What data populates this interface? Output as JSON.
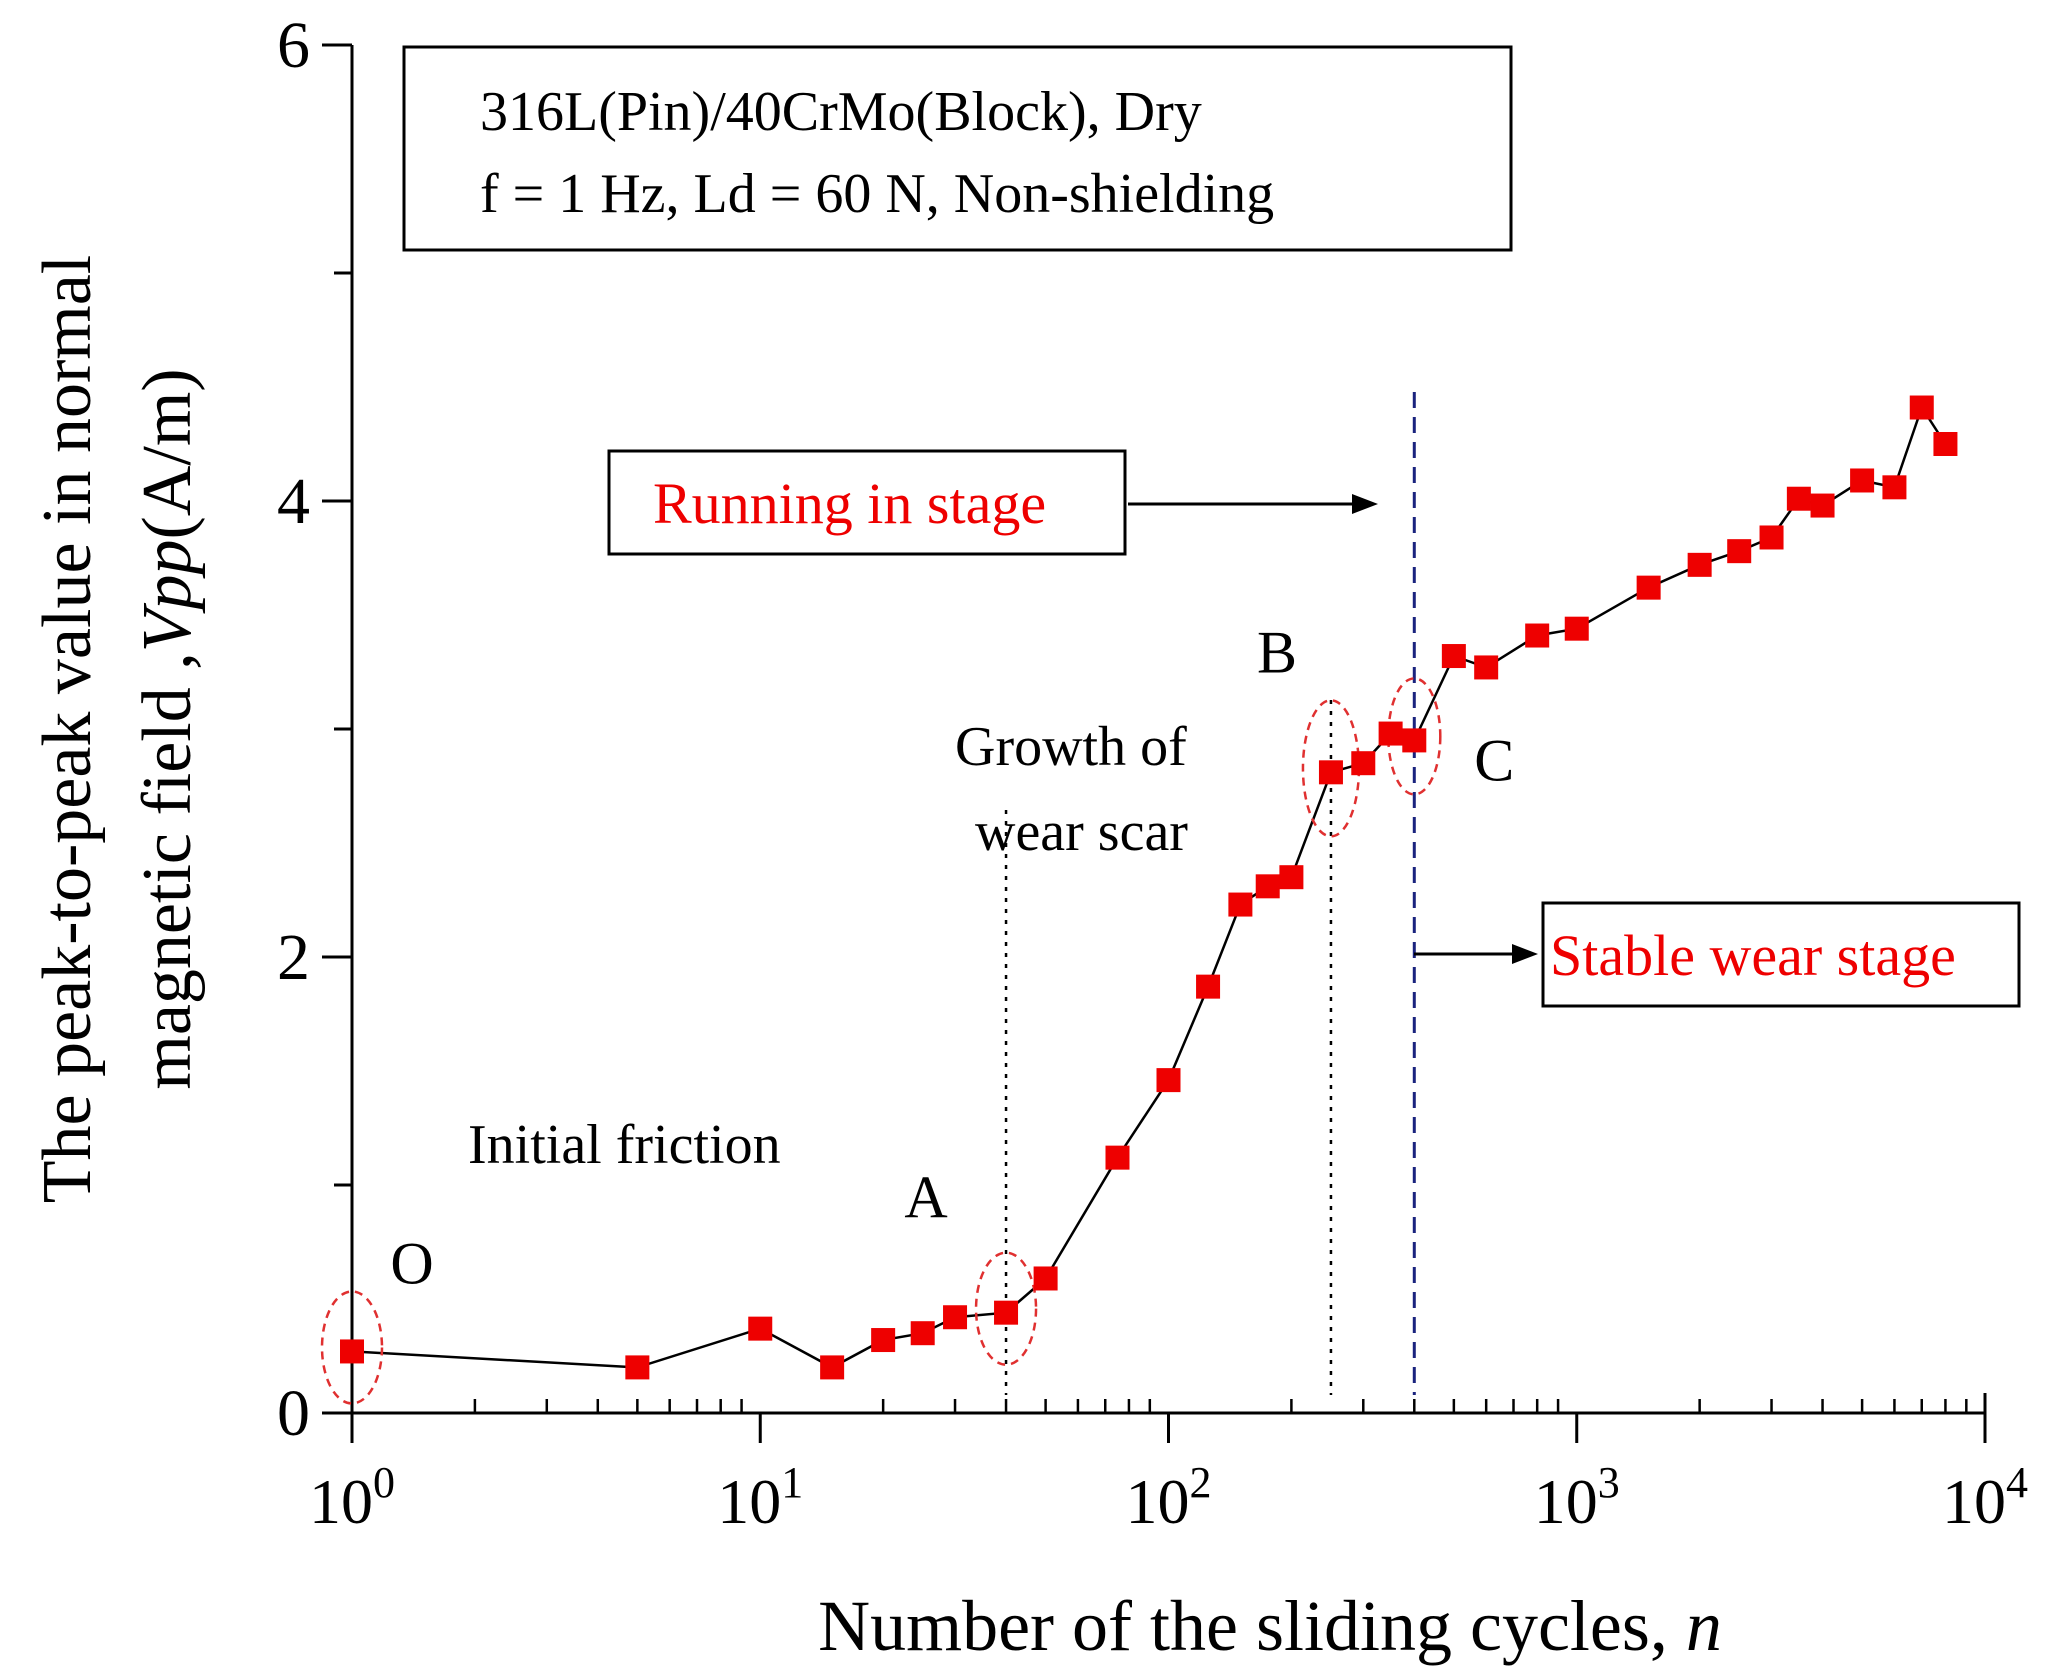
{
  "chart_data": {
    "type": "scatter",
    "x_scale": "log",
    "xlim": [
      1,
      10000
    ],
    "ylim": [
      0,
      6
    ],
    "xlabel": "Number of the sliding cycles, ",
    "xlabel_var": "n",
    "ylabel_line1": "The peak-to-peak value in normal",
    "ylabel_line2": "magnetic field ,",
    "ylabel_var": "Vpp",
    "ylabel_unit": "(A/m)",
    "x_ticks": [
      {
        "value": 1,
        "base": "10",
        "exp": "0"
      },
      {
        "value": 10,
        "base": "10",
        "exp": "1"
      },
      {
        "value": 100,
        "base": "10",
        "exp": "2"
      },
      {
        "value": 1000,
        "base": "10",
        "exp": "3"
      },
      {
        "value": 10000,
        "base": "10",
        "exp": "4"
      }
    ],
    "y_ticks": [
      {
        "value": 0,
        "label": "0"
      },
      {
        "value": 2,
        "label": "2"
      },
      {
        "value": 4,
        "label": "4"
      },
      {
        "value": 6,
        "label": "6"
      }
    ],
    "y_minor_ticks": [
      1,
      3,
      5
    ],
    "series": [
      {
        "name": "Vpp",
        "color": "#ee0000",
        "line_color": "#000000",
        "points": [
          {
            "x": 1,
            "y": 0.27
          },
          {
            "x": 5,
            "y": 0.2
          },
          {
            "x": 10,
            "y": 0.37
          },
          {
            "x": 15,
            "y": 0.2
          },
          {
            "x": 20,
            "y": 0.32
          },
          {
            "x": 25,
            "y": 0.35
          },
          {
            "x": 30,
            "y": 0.42
          },
          {
            "x": 40,
            "y": 0.44
          },
          {
            "x": 50,
            "y": 0.59
          },
          {
            "x": 75,
            "y": 1.12
          },
          {
            "x": 100,
            "y": 1.46
          },
          {
            "x": 125,
            "y": 1.87
          },
          {
            "x": 150,
            "y": 2.23
          },
          {
            "x": 175,
            "y": 2.31
          },
          {
            "x": 200,
            "y": 2.35
          },
          {
            "x": 250,
            "y": 2.81
          },
          {
            "x": 300,
            "y": 2.85
          },
          {
            "x": 350,
            "y": 2.98
          },
          {
            "x": 400,
            "y": 2.95
          },
          {
            "x": 500,
            "y": 3.32
          },
          {
            "x": 600,
            "y": 3.27
          },
          {
            "x": 800,
            "y": 3.41
          },
          {
            "x": 1000,
            "y": 3.44
          },
          {
            "x": 1500,
            "y": 3.62
          },
          {
            "x": 2000,
            "y": 3.72
          },
          {
            "x": 2500,
            "y": 3.78
          },
          {
            "x": 3000,
            "y": 3.84
          },
          {
            "x": 3500,
            "y": 4.01
          },
          {
            "x": 4000,
            "y": 3.98
          },
          {
            "x": 5000,
            "y": 4.09
          },
          {
            "x": 6000,
            "y": 4.06
          },
          {
            "x": 7000,
            "y": 4.41
          },
          {
            "x": 8000,
            "y": 4.25
          }
        ]
      }
    ],
    "legend_box": {
      "line1": "316L(Pin)/40CrMo(Block), Dry",
      "line2": "f = 1 Hz, Ld = 60 N, Non-shielding"
    },
    "stage_boxes": [
      {
        "text": "Running in stage",
        "color": "#ee0000"
      },
      {
        "text": "Stable wear stage",
        "color": "#ee0000"
      }
    ],
    "point_labels": [
      {
        "text": "O",
        "x": 1,
        "y": 0.27
      },
      {
        "text": "A",
        "x": 40,
        "y": 0.44
      },
      {
        "text": "B",
        "x": 250,
        "y": 2.81
      },
      {
        "text": "C",
        "x": 400,
        "y": 2.95
      }
    ],
    "annotations": [
      {
        "text": "Initial friction"
      },
      {
        "text": "Growth of"
      },
      {
        "text": "wear scar"
      }
    ],
    "vertical_lines": [
      {
        "x": 40,
        "style": "dotted",
        "color": "#000000"
      },
      {
        "x": 250,
        "style": "dotted",
        "color": "#000000"
      },
      {
        "x": 400,
        "style": "dashed",
        "color": "#1a237e"
      }
    ],
    "highlight_color": "#e03030"
  }
}
